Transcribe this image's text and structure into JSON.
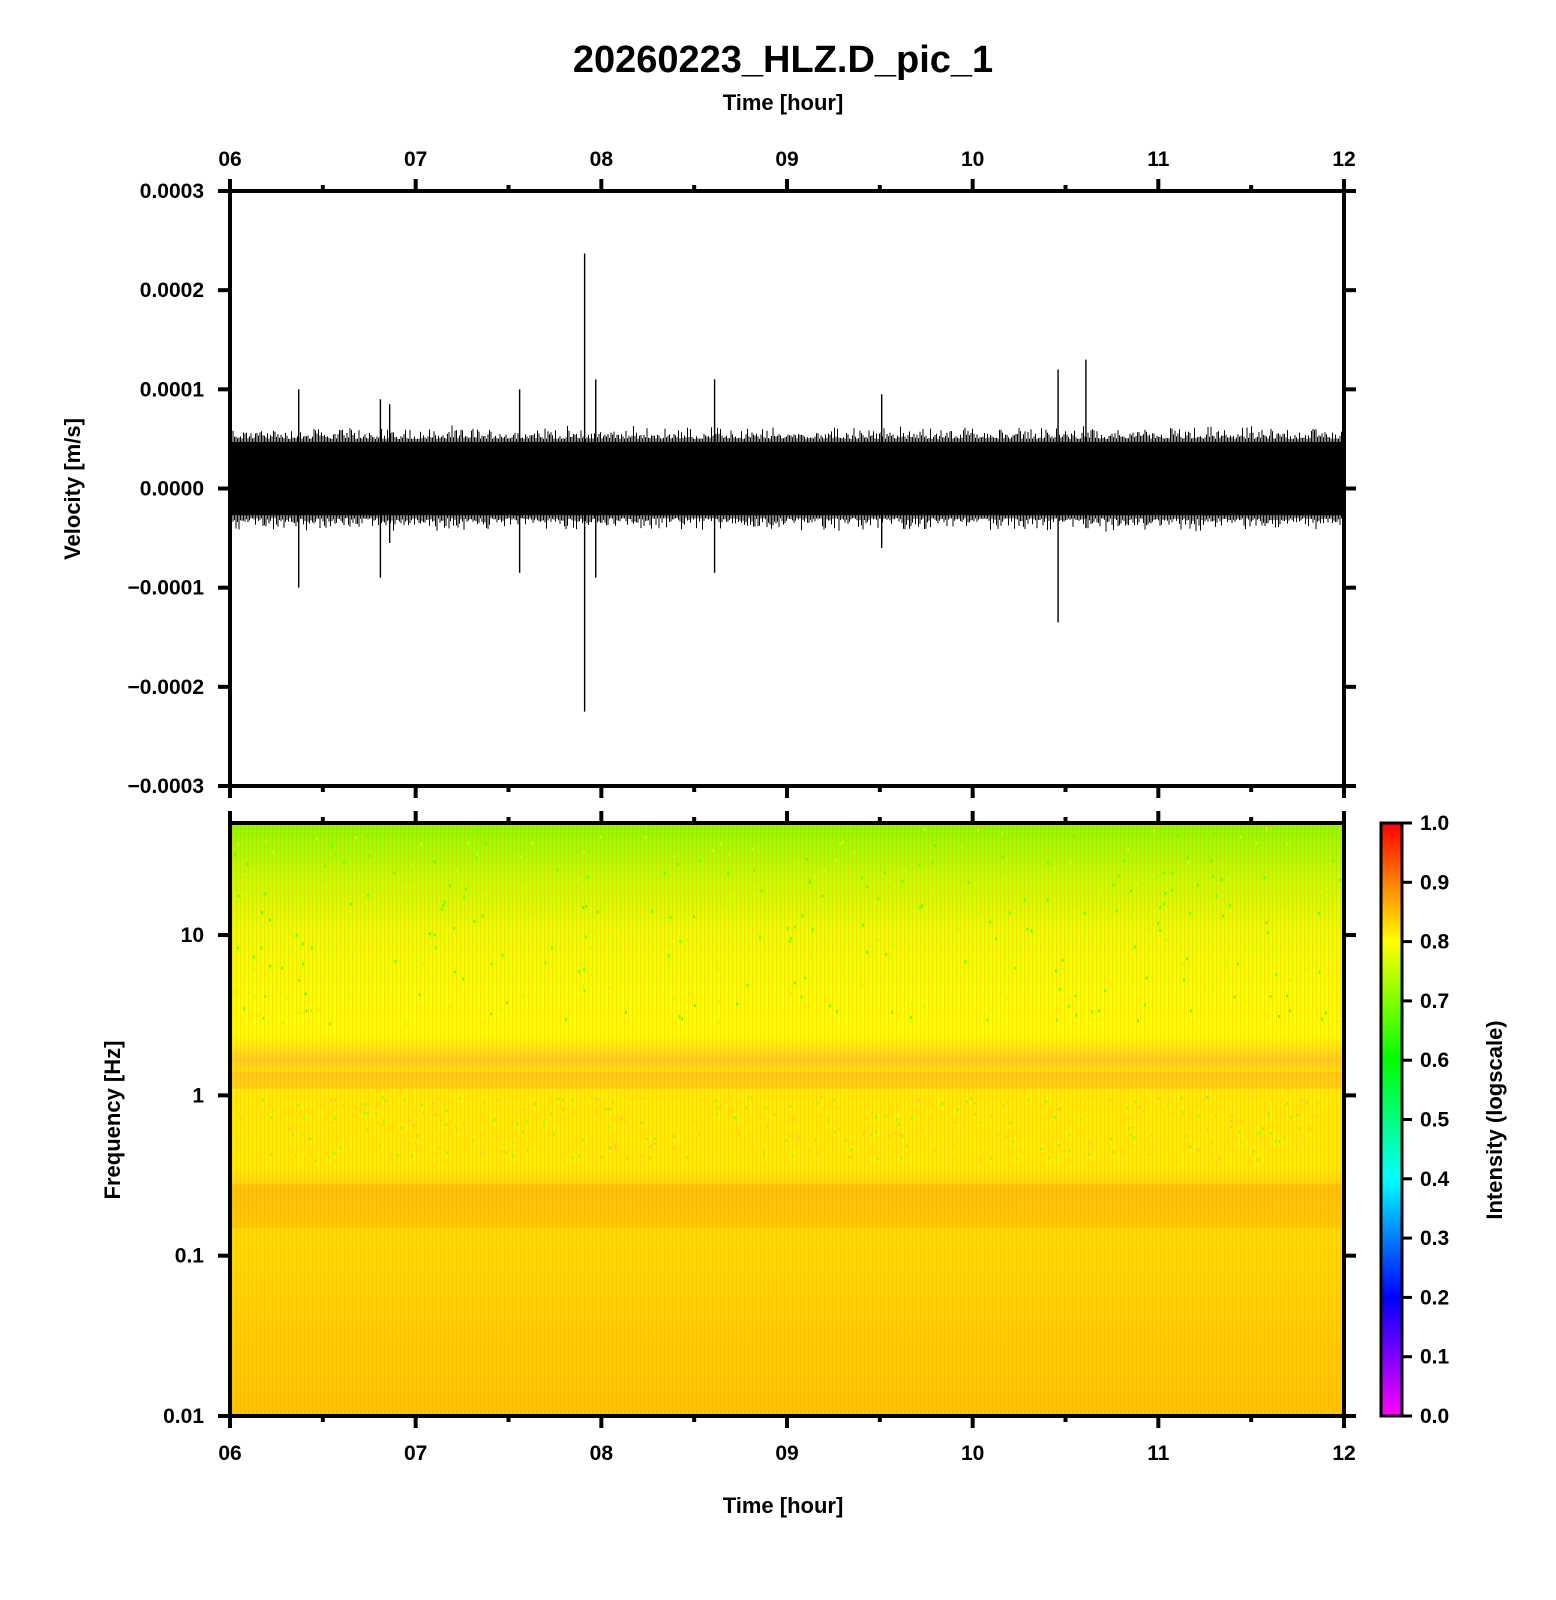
{
  "chart_data": [
    {
      "type": "line",
      "title": "20260223_HLZ.D_pic_1",
      "xlabel": "Time [hour]",
      "ylabel": "Velocity [m/s]",
      "xlim": [
        6,
        12
      ],
      "ylim": [
        -0.0003,
        0.0003
      ],
      "x_tick_labels": [
        "06",
        "07",
        "08",
        "09",
        "10",
        "11",
        "12"
      ],
      "y_tick_labels": [
        "0.0003",
        "0.0002",
        "0.0001",
        "0.0000",
        "−0.0001",
        "−0.0002",
        "−0.0003"
      ],
      "y_ticks": [
        0.0003,
        0.0002,
        0.0001,
        0.0,
        -0.0001,
        -0.0002,
        -0.0003
      ],
      "series": [
        {
          "noise_band": [
            -3e-05,
            5e-05
          ],
          "color": "#000000",
          "spikes": [
            {
              "t": 6.37,
              "max": 0.0001,
              "min": -0.0001
            },
            {
              "t": 6.81,
              "max": 9e-05,
              "min": -9e-05
            },
            {
              "t": 6.86,
              "max": 8.5e-05,
              "min": -5.5e-05
            },
            {
              "t": 7.56,
              "max": 0.0001,
              "min": -8.5e-05
            },
            {
              "t": 7.91,
              "max": 0.000237,
              "min": -0.000225
            },
            {
              "t": 7.97,
              "max": 0.00011,
              "min": -9e-05
            },
            {
              "t": 8.61,
              "max": 0.00011,
              "min": -8.5e-05
            },
            {
              "t": 9.51,
              "max": 9.5e-05,
              "min": -6e-05
            },
            {
              "t": 10.46,
              "max": 0.00012,
              "min": -0.000135
            },
            {
              "t": 10.61,
              "max": 0.00013,
              "min": -4e-05
            }
          ]
        }
      ],
      "grid": false
    },
    {
      "type": "heatmap",
      "xlabel": "Time [hour]",
      "ylabel": "Frequency [Hz]",
      "xlim": [
        6,
        12
      ],
      "ylim": [
        0.01,
        50
      ],
      "yscale": "log",
      "x_tick_labels": [
        "06",
        "07",
        "08",
        "09",
        "10",
        "11",
        "12"
      ],
      "y_ticks": [
        0.01,
        0.1,
        1,
        10
      ],
      "y_tick_labels": [
        "0.01",
        "0.1",
        "1",
        "10"
      ],
      "colorbar": {
        "label": "Intensity (logscale)",
        "range": [
          0.0,
          1.0
        ],
        "tick_labels": [
          "0.0",
          "0.1",
          "0.2",
          "0.3",
          "0.4",
          "0.5",
          "0.6",
          "0.7",
          "0.8",
          "0.9",
          "1.0"
        ],
        "colormap": [
          "#ff00ff",
          "#0000ff",
          "#00ffff",
          "#00ff00",
          "#ffff00",
          "#ff0000"
        ]
      },
      "intensity_profile": [
        {
          "freq": 50,
          "intensity": 0.68
        },
        {
          "freq": 10,
          "intensity": 0.74
        },
        {
          "freq": 3,
          "intensity": 0.77
        },
        {
          "freq": 1.4,
          "intensity": 0.82
        },
        {
          "freq": 1.1,
          "intensity": 0.84
        },
        {
          "freq": 0.8,
          "intensity": 0.78
        },
        {
          "freq": 0.3,
          "intensity": 0.8
        },
        {
          "freq": 0.2,
          "intensity": 0.86
        },
        {
          "freq": 0.1,
          "intensity": 0.82
        },
        {
          "freq": 0.01,
          "intensity": 0.87
        }
      ]
    }
  ]
}
